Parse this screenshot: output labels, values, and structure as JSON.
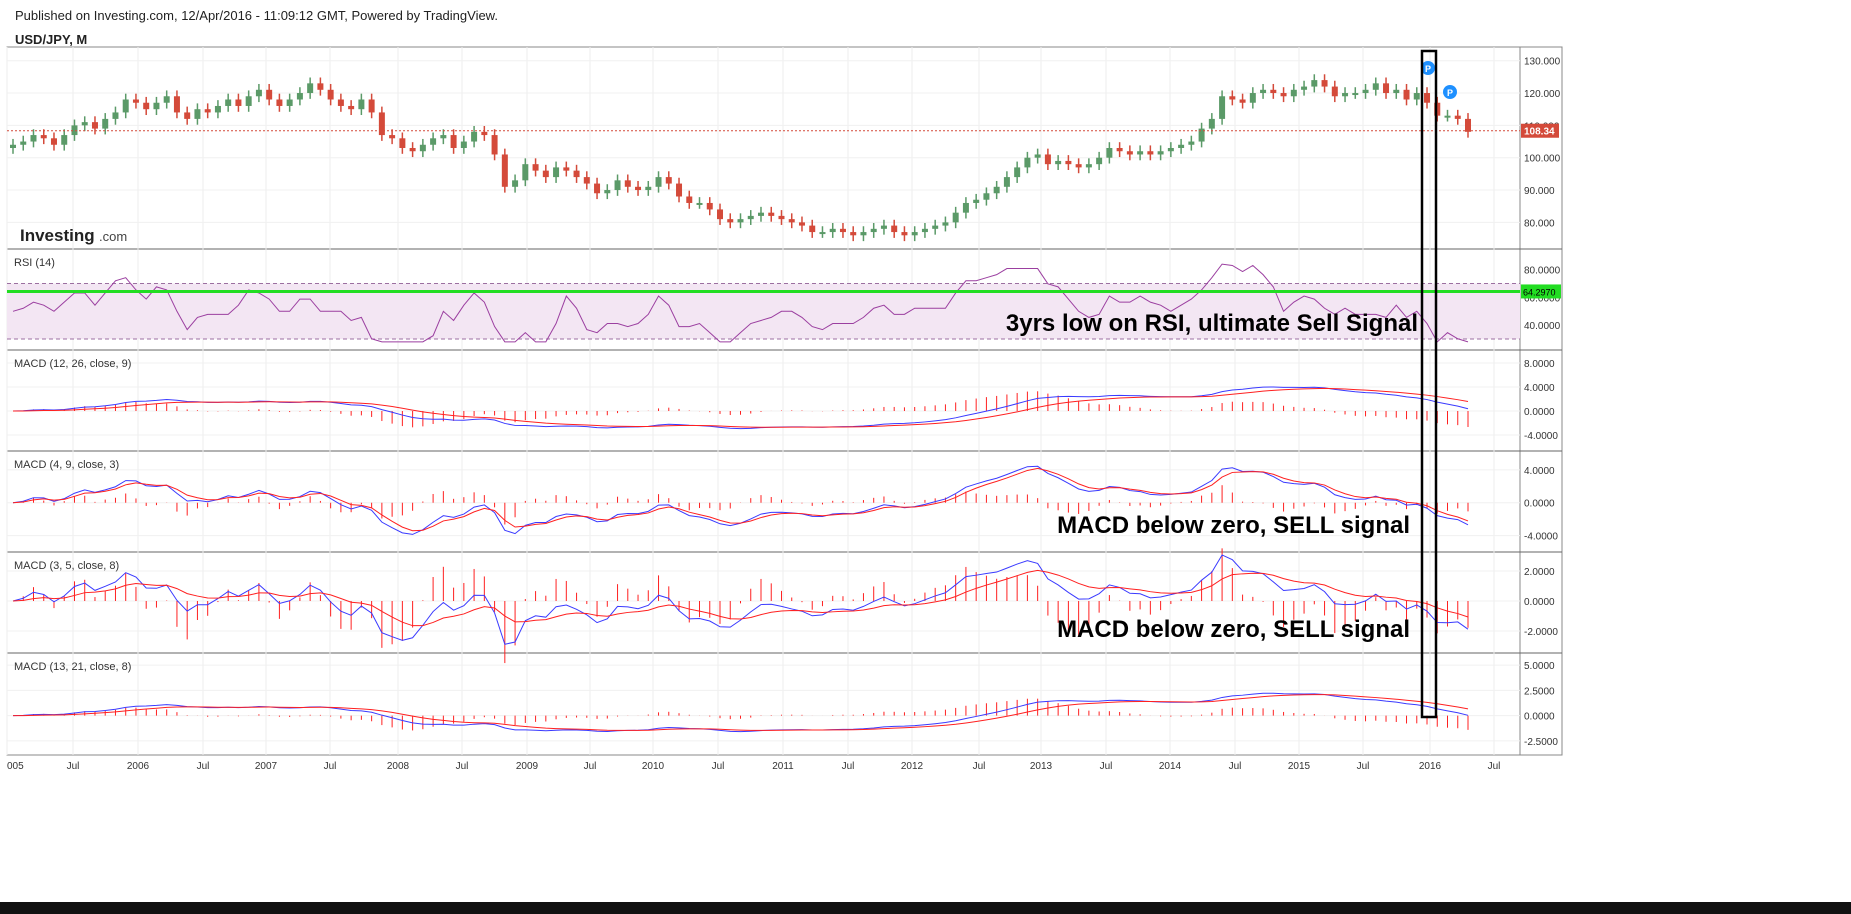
{
  "header": {
    "published": "Published on Investing.com, 12/Apr/2016 - 11:09:12 GMT, Powered by TradingView.",
    "symbol": "USD/JPY, M"
  },
  "logo": {
    "text": "Investing",
    "suffix": ".com"
  },
  "colors": {
    "up": "#5b9a68",
    "down": "#d44a3a",
    "macd": "#3a3aff",
    "signal": "#ff2020",
    "rsi": "#9b3fa0",
    "rsi_band": "#f3e6f3",
    "green_line": "#22dd22",
    "price_line": "#d44a3a",
    "box": "#000000"
  },
  "chart_data": [
    {
      "type": "candlestick",
      "title": "USD/JPY, M",
      "last_price_label": "108.34",
      "y_ticks": [
        "130.000",
        "120.000",
        "110.000",
        "100.000",
        "90.000",
        "80.000"
      ],
      "ylim": [
        73,
        133
      ],
      "markers": [
        "P",
        "P"
      ],
      "x_start": "2005-01",
      "ohlc_monthly_close": [
        104,
        105,
        107,
        106,
        104,
        107,
        110,
        111,
        109,
        112,
        114,
        118,
        117,
        115,
        117,
        119,
        114,
        112,
        115,
        114,
        116,
        118,
        116,
        119,
        121,
        118,
        116,
        118,
        120,
        123,
        121,
        118,
        116,
        115,
        118,
        114,
        107,
        106,
        103,
        102,
        104,
        106,
        107,
        103,
        105,
        108,
        107,
        101,
        91,
        93,
        98,
        96,
        94,
        97,
        96,
        94,
        92,
        89,
        90,
        93,
        91,
        90,
        91,
        94,
        92,
        88,
        86,
        86,
        84,
        81,
        80,
        81,
        82,
        83,
        82,
        81,
        80,
        79,
        77,
        77,
        78,
        77,
        76,
        77,
        78,
        79,
        77,
        76,
        77,
        78,
        79,
        80,
        83,
        86,
        87,
        89,
        91,
        94,
        97,
        100,
        101,
        98,
        99,
        98,
        97,
        98,
        100,
        103,
        102,
        101,
        102,
        101,
        102,
        103,
        104,
        105,
        109,
        112,
        119,
        118,
        117,
        120,
        121,
        120,
        119,
        121,
        122,
        124,
        122,
        119,
        120,
        120,
        121,
        123,
        120,
        121,
        118,
        120,
        117,
        113,
        113,
        112,
        108
      ]
    },
    {
      "type": "line",
      "title": "RSI (14)",
      "y_ticks": [
        "80.0000",
        "60.0000",
        "40.0000"
      ],
      "ylim": [
        25,
        92
      ],
      "band": [
        30,
        70
      ],
      "last_value_label": "64.2970",
      "annotation": "3yrs low on RSI, ultimate Sell Signal"
    },
    {
      "type": "macd",
      "title": "MACD (12, 26, close, 9)",
      "y_ticks": [
        "8.0000",
        "4.0000",
        "0.0000",
        "-4.0000"
      ],
      "ylim": [
        -6,
        9.5
      ],
      "annotation": ""
    },
    {
      "type": "macd",
      "title": "MACD (4, 9, close, 3)",
      "y_ticks": [
        "4.0000",
        "0.0000",
        "-4.0000"
      ],
      "ylim": [
        -5.5,
        5.8
      ],
      "annotation": "MACD below zero, SELL signal"
    },
    {
      "type": "macd",
      "title": "MACD (3, 5, close, 8)",
      "y_ticks": [
        "2.0000",
        "0.0000",
        "-2.0000"
      ],
      "ylim": [
        -3.2,
        3.0
      ],
      "annotation": "MACD below zero, SELL signal"
    },
    {
      "type": "macd",
      "title": "MACD (13, 21, close, 8)",
      "y_ticks": [
        "5.0000",
        "2.5000",
        "0.0000",
        "-2.5000"
      ],
      "ylim": [
        -3.5,
        5.8
      ],
      "annotation": ""
    }
  ],
  "x_axis": {
    "ticks": [
      "005",
      "Jul",
      "2006",
      "Jul",
      "2007",
      "Jul",
      "2008",
      "Jul",
      "2009",
      "Jul",
      "2010",
      "Jul",
      "2011",
      "Jul",
      "2012",
      "Jul",
      "2013",
      "Jul",
      "2014",
      "Jul",
      "2015",
      "Jul",
      "2016",
      "Jul"
    ]
  }
}
